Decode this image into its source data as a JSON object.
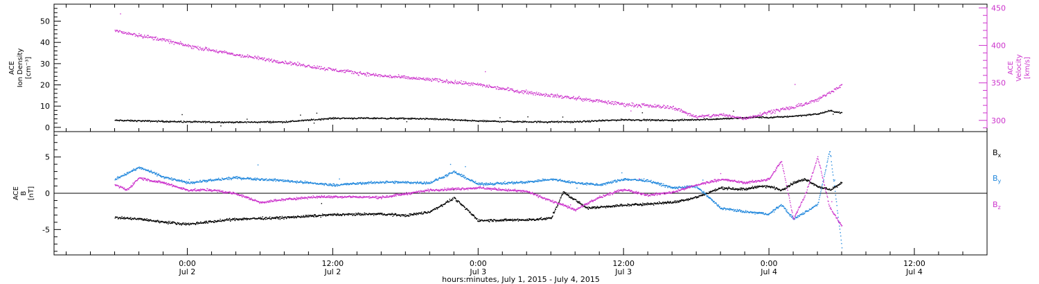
{
  "chart_data": [
    {
      "type": "scatter",
      "panel": "top",
      "ylabel_lines": [
        "ACE",
        "Ion Density",
        "[cm⁻³]"
      ],
      "y2label_lines": [
        "ACE",
        "Velocity",
        "[km/s]"
      ],
      "ylim": [
        -2,
        58
      ],
      "y_ticks": [
        0,
        10,
        20,
        30,
        40,
        50
      ],
      "y2lim": [
        285,
        455
      ],
      "y2_ticks": [
        300,
        350,
        400,
        450
      ],
      "grid": false,
      "series": [
        {
          "axis": "left",
          "color": "#000000",
          "hours": [
            -6,
            0,
            4,
            8,
            12,
            16,
            20,
            24,
            28,
            32,
            36,
            40,
            44,
            47,
            48,
            50,
            52,
            53,
            54
          ],
          "values": [
            3.5,
            2.8,
            2.6,
            2.8,
            4.5,
            4.5,
            4.2,
            3.2,
            2.8,
            2.8,
            3.8,
            3.5,
            4.2,
            5.0,
            4.8,
            5.5,
            6.5,
            8.0,
            7.0
          ]
        },
        {
          "axis": "right",
          "color": "#cc33cc",
          "hours": [
            -6,
            -2,
            0,
            4,
            8,
            12,
            16,
            20,
            24,
            28,
            32,
            36,
            40,
            42,
            44,
            46,
            48,
            50,
            52,
            54
          ],
          "values": [
            420,
            408,
            400,
            388,
            378,
            368,
            360,
            355,
            348,
            338,
            330,
            322,
            318,
            305,
            308,
            303,
            312,
            318,
            328,
            348
          ]
        }
      ]
    },
    {
      "type": "scatter",
      "panel": "bottom",
      "ylabel_lines": [
        "ACE",
        "B",
        "[nT]"
      ],
      "ylim": [
        -8.5,
        8.5
      ],
      "y_ticks": [
        -5,
        0,
        5
      ],
      "grid": false,
      "zero_line": true,
      "x_hours_start": -11,
      "x_hours_end": 66,
      "x_ticks": [
        {
          "h": 0,
          "top": "0:00",
          "bottom": "Jul 2"
        },
        {
          "h": 12,
          "top": "12:00",
          "bottom": "Jul 2"
        },
        {
          "h": 24,
          "top": "0:00",
          "bottom": "Jul 3"
        },
        {
          "h": 36,
          "top": "12:00",
          "bottom": "Jul 3"
        },
        {
          "h": 48,
          "top": "0:00",
          "bottom": "Jul 4"
        },
        {
          "h": 60,
          "top": "12:00",
          "bottom": "Jul 4"
        }
      ],
      "xlabel": "hours:minutes, July  1, 2015 - July  4, 2015",
      "series": [
        {
          "name": "Bx",
          "color": "#000000",
          "hours": [
            -6,
            -4,
            -2,
            0,
            4,
            8,
            12,
            16,
            18,
            20,
            22,
            24,
            28,
            30,
            31,
            33,
            35,
            37,
            40,
            42,
            44,
            46,
            47,
            48,
            49,
            50,
            51,
            52,
            53,
            54
          ],
          "values": [
            -3.3,
            -3.5,
            -3.9,
            -4.2,
            -3.5,
            -3.3,
            -2.9,
            -2.8,
            -3.0,
            -2.5,
            -0.6,
            -3.7,
            -3.6,
            -3.4,
            0.2,
            -2.0,
            -1.7,
            -1.5,
            -1.2,
            -0.5,
            0.8,
            0.6,
            1.0,
            1.0,
            0.5,
            1.5,
            2.0,
            1.0,
            0.5,
            1.5
          ]
        },
        {
          "name": "By",
          "color": "#2288dd",
          "hours": [
            -6,
            -4,
            -3,
            -2,
            0,
            4,
            8,
            12,
            16,
            20,
            22,
            24,
            28,
            30,
            32,
            34,
            36,
            38,
            40,
            42,
            44,
            46,
            48,
            49,
            50,
            51,
            52,
            53,
            54
          ],
          "values": [
            2.0,
            3.6,
            3.0,
            2.3,
            1.5,
            2.2,
            1.8,
            1.2,
            1.6,
            1.5,
            3.0,
            1.3,
            1.6,
            2.0,
            1.5,
            1.2,
            2.0,
            1.8,
            0.8,
            1.0,
            -2.0,
            -2.5,
            -2.8,
            -1.5,
            -3.5,
            -2.5,
            -1.5,
            6.0,
            -7.5
          ]
        },
        {
          "name": "Bz",
          "color": "#cc33cc",
          "hours": [
            -6,
            -5,
            -4,
            -3,
            -2,
            0,
            2,
            4,
            6,
            8,
            10,
            12,
            16,
            20,
            24,
            28,
            30,
            32,
            34,
            36,
            38,
            40,
            42,
            44,
            46,
            48,
            49,
            50,
            51,
            52,
            53,
            54
          ],
          "values": [
            1.2,
            0.5,
            2.2,
            1.8,
            1.5,
            0.5,
            0.5,
            0.0,
            -1.2,
            -0.8,
            -0.5,
            -0.4,
            -0.5,
            0.5,
            0.8,
            0.3,
            -1.0,
            -2.2,
            -0.5,
            0.6,
            -0.2,
            0.2,
            1.2,
            2.0,
            1.5,
            2.0,
            4.5,
            -3.5,
            0.0,
            5.0,
            -2.0,
            -4.5
          ]
        }
      ]
    }
  ],
  "legend": {
    "bx_base": "B",
    "bx_sub": "x",
    "by_base": "B",
    "by_sub": "y",
    "bz_base": "B",
    "bz_sub": "z"
  }
}
